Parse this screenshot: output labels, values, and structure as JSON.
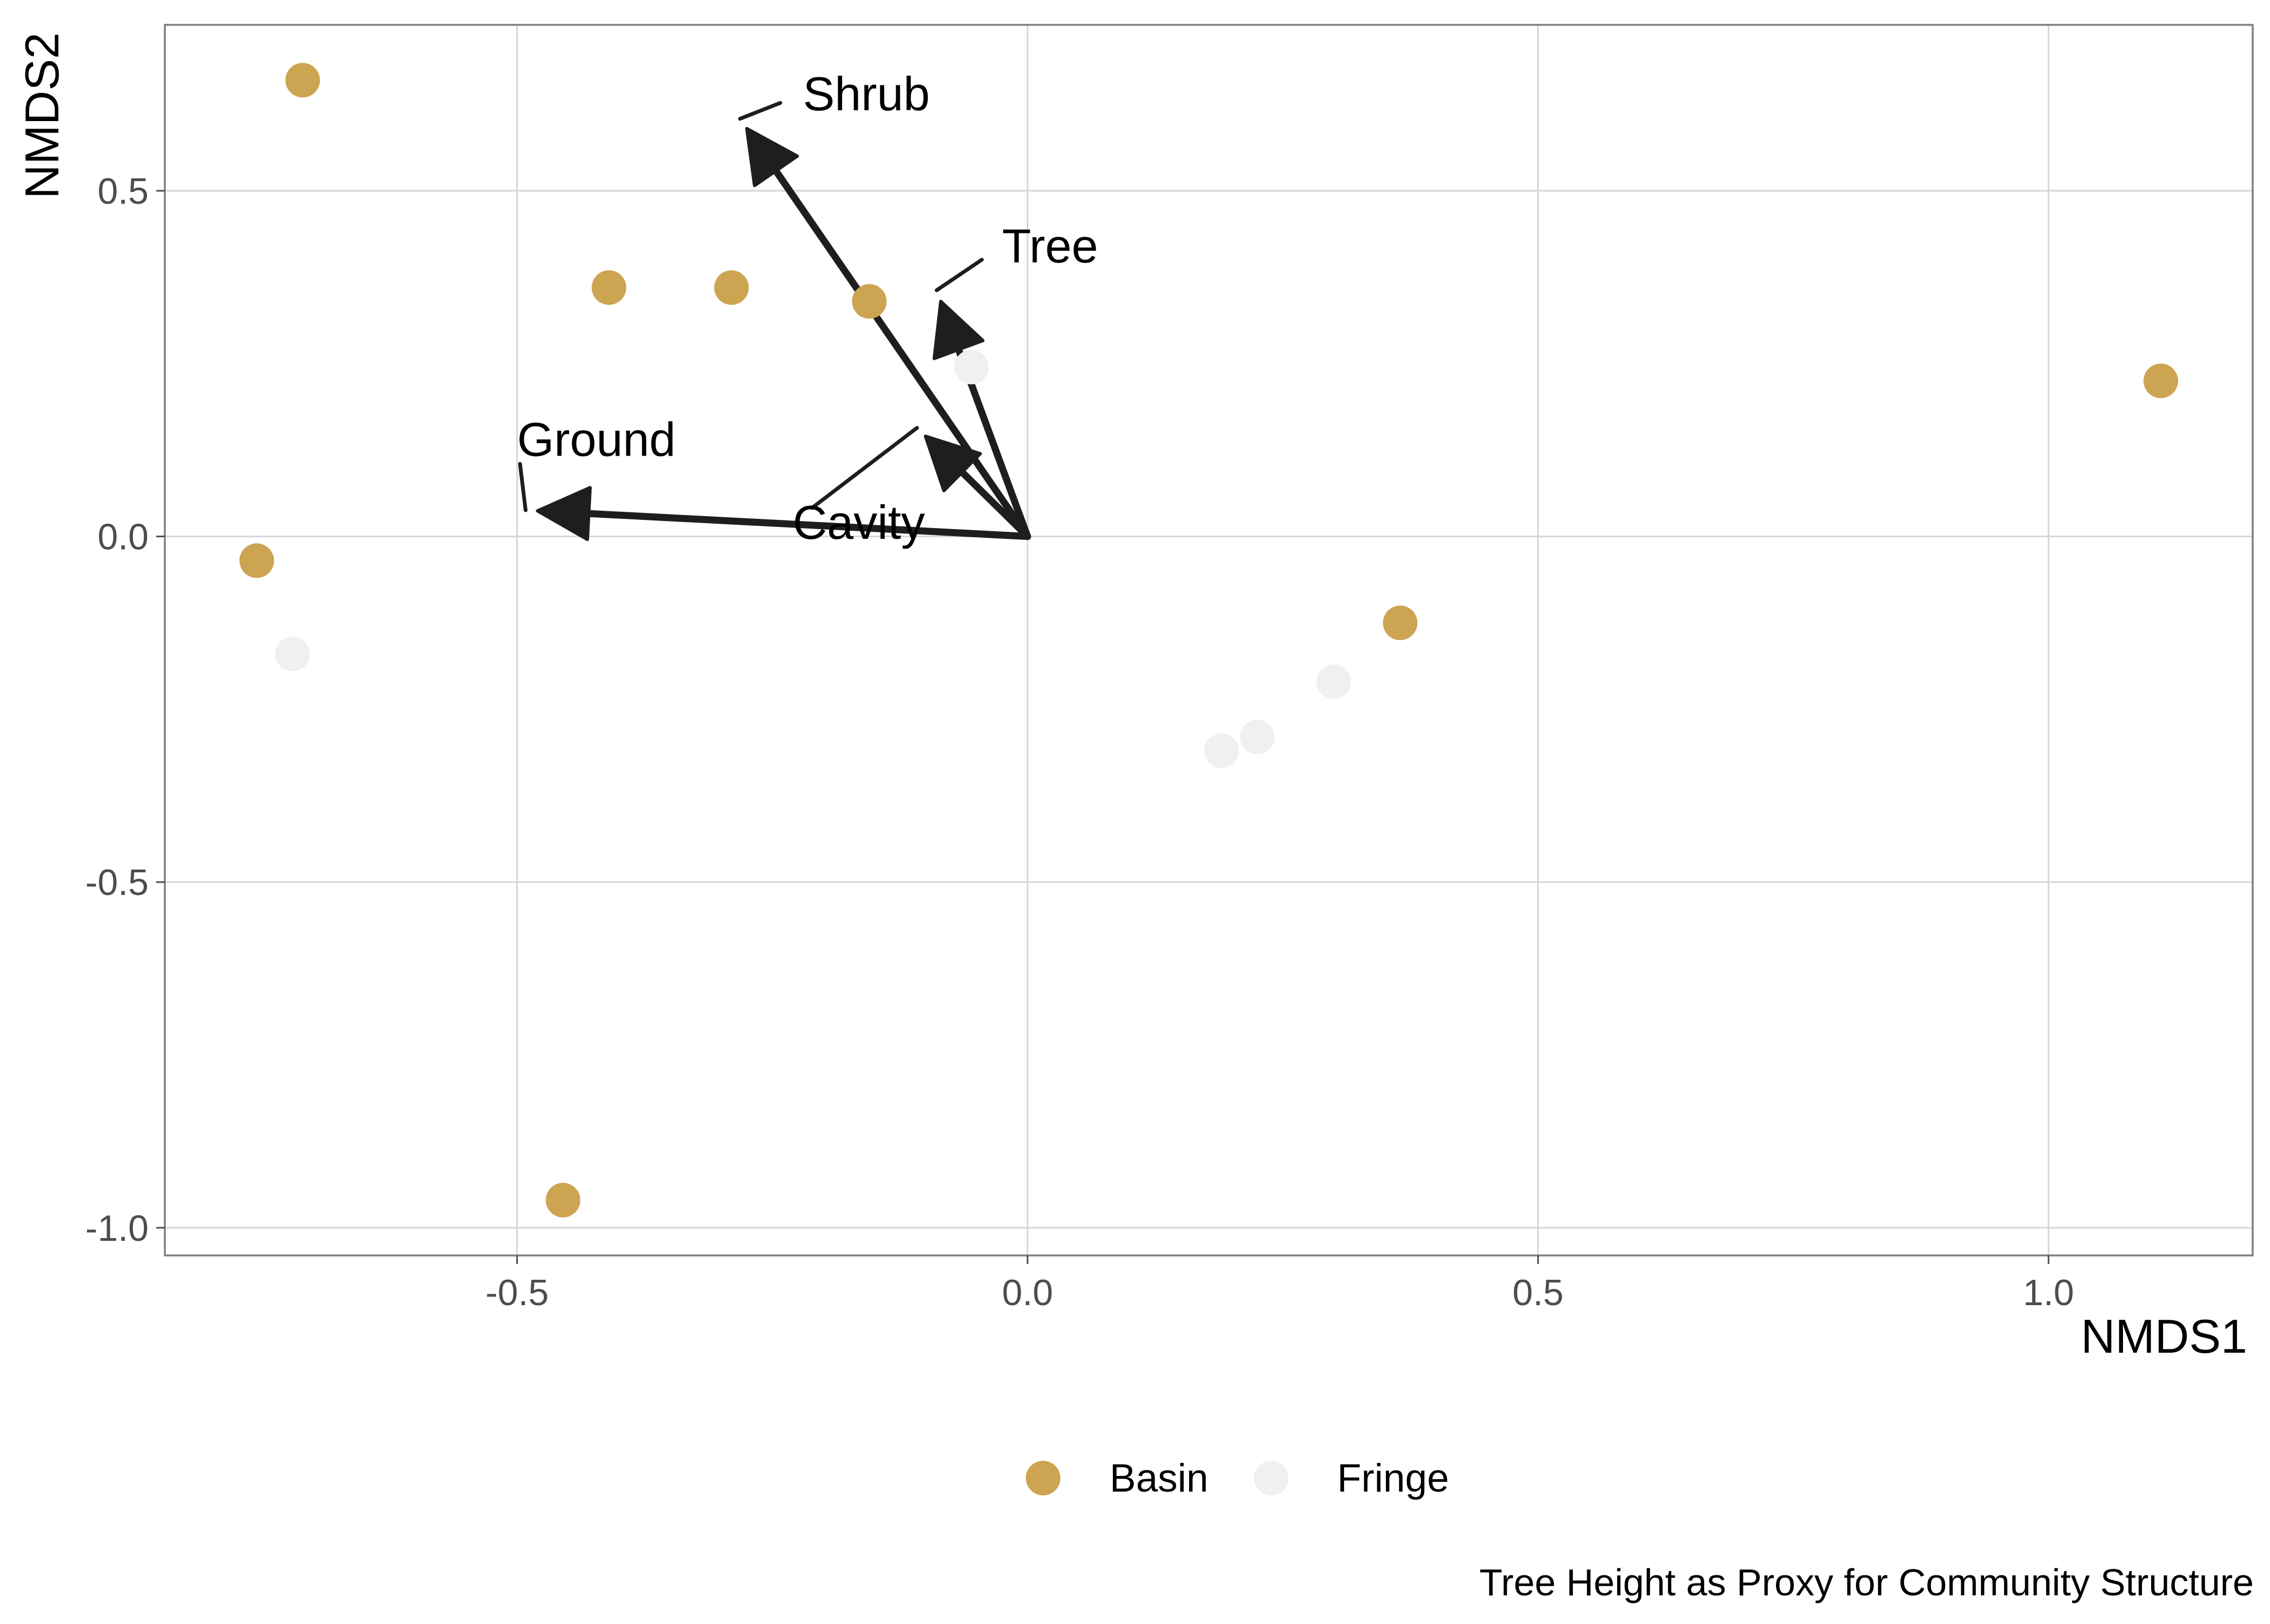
{
  "chart_data": {
    "type": "scatter",
    "title": "",
    "caption": "Tree Height as Proxy for Community Structure",
    "xlabel": "NMDS1",
    "ylabel": "NMDS2",
    "xlim": [
      -0.845,
      1.2
    ],
    "ylim": [
      -1.04,
      0.74
    ],
    "x_ticks": [
      -0.5,
      0.0,
      0.5,
      1.0
    ],
    "y_ticks": [
      0.5,
      0.0,
      -0.5,
      -1.0
    ],
    "x_tick_labels": [
      "-0.5",
      "0.0",
      "0.5",
      "1.0"
    ],
    "y_tick_labels": [
      "0.5",
      "0.0",
      "-0.5",
      "-1.0"
    ],
    "grid": true,
    "legend_position": "bottom",
    "series": [
      {
        "name": "Basin",
        "color": "#cda452",
        "points": [
          {
            "x": -0.71,
            "y": 0.66
          },
          {
            "x": -0.41,
            "y": 0.36
          },
          {
            "x": -0.29,
            "y": 0.36
          },
          {
            "x": -0.155,
            "y": 0.34
          },
          {
            "x": -0.755,
            "y": -0.035
          },
          {
            "x": -0.455,
            "y": -0.96
          },
          {
            "x": 0.365,
            "y": -0.125
          },
          {
            "x": 1.11,
            "y": 0.225
          }
        ]
      },
      {
        "name": "Fringe",
        "color": "#f0f0f0",
        "points": [
          {
            "x": -0.055,
            "y": 0.245
          },
          {
            "x": -0.72,
            "y": -0.17
          },
          {
            "x": 0.19,
            "y": -0.31
          },
          {
            "x": 0.225,
            "y": -0.29
          },
          {
            "x": 0.3,
            "y": -0.21
          }
        ]
      }
    ],
    "vectors": [
      {
        "name": "Shrub",
        "x": -0.275,
        "y": 0.59,
        "label_x": -0.22,
        "label_y": 0.64
      },
      {
        "name": "Tree",
        "x": -0.085,
        "y": 0.34,
        "label_x": -0.025,
        "label_y": 0.42
      },
      {
        "name": "Cavity",
        "x": -0.1,
        "y": 0.145,
        "label_x": -0.23,
        "label_y": 0.02
      },
      {
        "name": "Ground",
        "x": -0.48,
        "y": 0.037,
        "label_x": -0.5,
        "label_y": 0.14
      }
    ],
    "vector_color": "#1e1e1e"
  }
}
